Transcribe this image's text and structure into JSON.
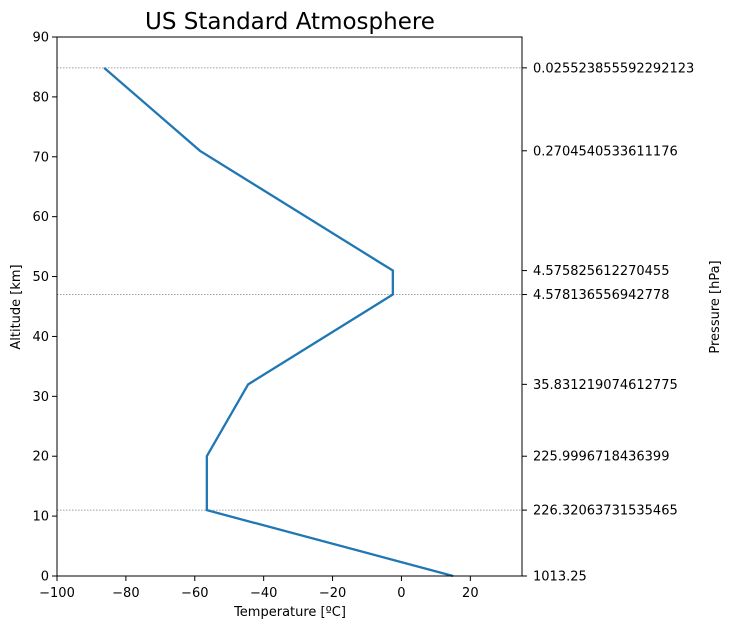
{
  "chart_data": {
    "type": "line",
    "title": "US Standard Atmosphere",
    "xlabel": "Temperature [ºC]",
    "ylabel": "Altitude [km]",
    "y2label": "Pressure [hPa]",
    "xlim": [
      -100,
      35
    ],
    "ylim": [
      0,
      90
    ],
    "x_ticks": [
      -100,
      -80,
      -60,
      -40,
      -20,
      0,
      20
    ],
    "x_tick_labels": [
      "−100",
      "−80",
      "−60",
      "−40",
      "−20",
      "0",
      "20"
    ],
    "y_ticks": [
      0,
      10,
      20,
      30,
      40,
      50,
      60,
      70,
      80,
      90
    ],
    "y_tick_labels": [
      "0",
      "10",
      "20",
      "30",
      "40",
      "50",
      "60",
      "70",
      "80",
      "90"
    ],
    "series": [
      {
        "color": "#1f77b4",
        "x": [
          15,
          -56.5,
          -56.5,
          -44.5,
          -2.5,
          -2.5,
          -58.5,
          -86.3
        ],
        "y": [
          0,
          11,
          20,
          32,
          47,
          51,
          71,
          84.85
        ]
      }
    ],
    "pressure_ticks": [
      {
        "altitude": 0,
        "label": "1013.25"
      },
      {
        "altitude": 11,
        "label": "226.32063731535465"
      },
      {
        "altitude": 20,
        "label": "225.9996718436399"
      },
      {
        "altitude": 32,
        "label": "35.831219074612775"
      },
      {
        "altitude": 47,
        "label": "4.578136556942778"
      },
      {
        "altitude": 51,
        "label": "4.575825612270455"
      },
      {
        "altitude": 71,
        "label": "0.2704540533611176"
      },
      {
        "altitude": 84.85,
        "label": "0.025523855592292123"
      }
    ],
    "reference_lines": [
      11,
      47,
      84.85
    ],
    "grid": false,
    "colors": {
      "line": "#1f77b4",
      "reference": "#808080",
      "axis": "#000000"
    }
  }
}
